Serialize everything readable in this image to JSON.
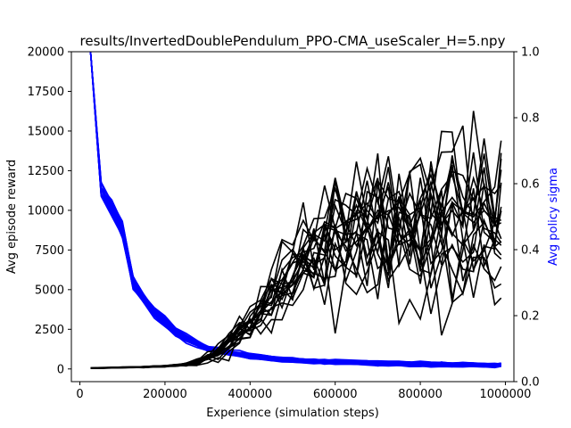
{
  "chart_data": {
    "type": "line",
    "title": "results/InvertedDoublePendulum_PPO-CMA_useScaler_H=5.npy",
    "xlabel": "Experience (simulation steps)",
    "ylabel": "Avg episode reward",
    "y2label": "Avg policy sigma",
    "xlim": [
      -20000,
      1020000
    ],
    "ylim": [
      -800,
      20000
    ],
    "y2lim": [
      0,
      1
    ],
    "xticks": [
      0,
      200000,
      400000,
      600000,
      800000,
      1000000
    ],
    "xtick_labels": [
      "0",
      "200000",
      "400000",
      "600000",
      "800000",
      "1000000"
    ],
    "yticks": [
      0,
      2500,
      5000,
      7500,
      10000,
      12500,
      15000,
      17500,
      20000
    ],
    "ytick_labels": [
      "0",
      "2500",
      "5000",
      "7500",
      "10000",
      "12500",
      "15000",
      "17500",
      "20000"
    ],
    "y2ticks": [
      0,
      0.2,
      0.4,
      0.6,
      0.8,
      1.0
    ],
    "y2tick_labels": [
      "0.0",
      "0.2",
      "0.4",
      "0.6",
      "0.8",
      "1.0"
    ],
    "grid": false,
    "legend": "none",
    "reward_color": "#000000",
    "sigma_color": "#0000ff",
    "run_count": 20,
    "x": [
      25000,
      50000,
      75000,
      100000,
      125000,
      150000,
      175000,
      200000,
      225000,
      250000,
      275000,
      300000,
      325000,
      350000,
      375000,
      400000,
      425000,
      450000,
      475000,
      500000,
      525000,
      550000,
      575000,
      600000,
      625000,
      650000,
      675000,
      700000,
      725000,
      750000,
      775000,
      800000,
      825000,
      850000,
      875000,
      900000,
      925000,
      950000,
      975000,
      990000
    ],
    "reward_mean": [
      50,
      60,
      80,
      100,
      110,
      120,
      150,
      180,
      220,
      300,
      450,
      700,
      1100,
      1600,
      2200,
      2900,
      3700,
      4600,
      5500,
      6300,
      7000,
      7600,
      8000,
      8300,
      8500,
      8700,
      8800,
      8900,
      9000,
      9050,
      9100,
      9150,
      9200,
      9200,
      9250,
      9250,
      9300,
      9300,
      9300,
      9300
    ],
    "reward_spread": [
      20,
      20,
      25,
      30,
      30,
      35,
      40,
      50,
      70,
      100,
      200,
      350,
      500,
      700,
      900,
      1100,
      1400,
      1800,
      2200,
      2600,
      3000,
      3300,
      3600,
      3800,
      4000,
      4100,
      4200,
      4300,
      4400,
      4500,
      4500,
      4600,
      4600,
      4700,
      4700,
      4800,
      4800,
      4800,
      4800,
      4800
    ],
    "sigma_mean": [
      1.0,
      0.58,
      0.52,
      0.46,
      0.3,
      0.25,
      0.21,
      0.18,
      0.15,
      0.13,
      0.115,
      0.1,
      0.093,
      0.087,
      0.082,
      0.077,
      0.073,
      0.07,
      0.067,
      0.065,
      0.063,
      0.061,
      0.06,
      0.059,
      0.058,
      0.057,
      0.056,
      0.055,
      0.054,
      0.054,
      0.053,
      0.053,
      0.052,
      0.052,
      0.051,
      0.051,
      0.051,
      0.05,
      0.05,
      0.05
    ],
    "sigma_spread": [
      0.0,
      0.02,
      0.02,
      0.02,
      0.02,
      0.015,
      0.013,
      0.012,
      0.01,
      0.01,
      0.009,
      0.008,
      0.008,
      0.007,
      0.007,
      0.007,
      0.007,
      0.006,
      0.006,
      0.006,
      0.006,
      0.006,
      0.006,
      0.006,
      0.006,
      0.006,
      0.006,
      0.006,
      0.006,
      0.006,
      0.006,
      0.006,
      0.006,
      0.006,
      0.006,
      0.006,
      0.006,
      0.006,
      0.006,
      0.006
    ]
  }
}
